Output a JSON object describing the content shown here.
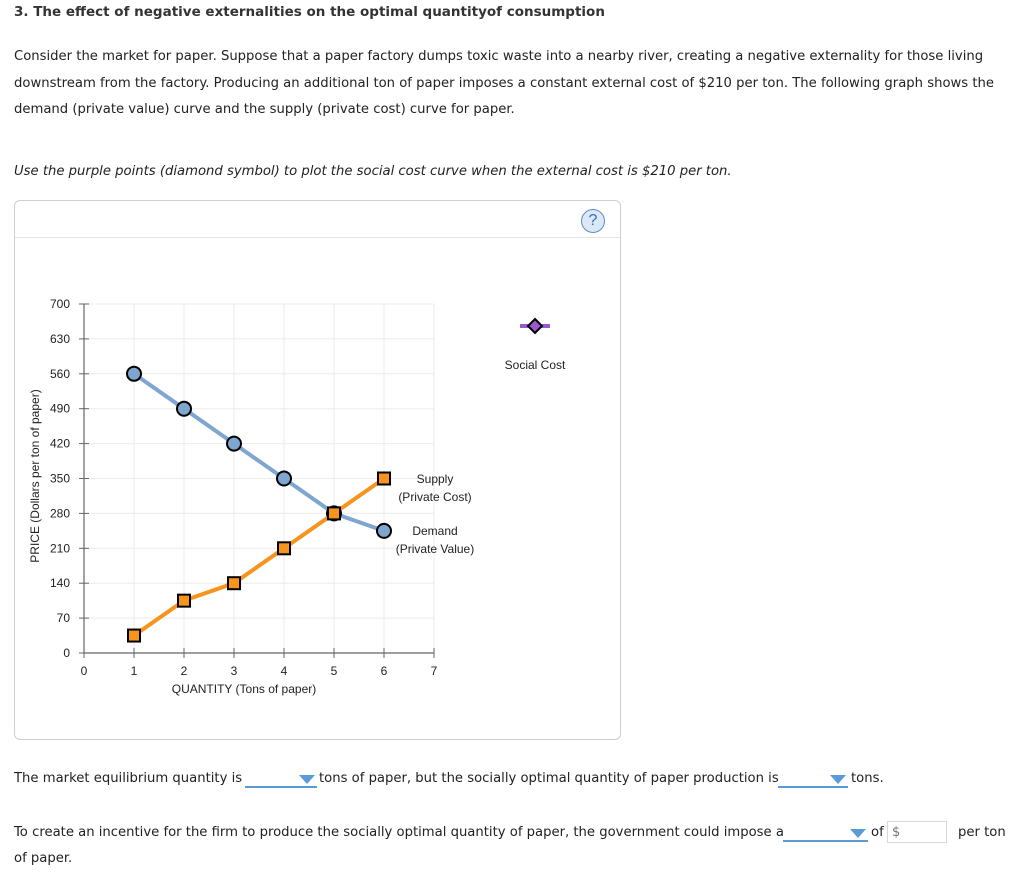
{
  "question": {
    "title": "3. The effect of negative externalities on the optimal quantityof consumption",
    "intro": "Consider the market for paper. Suppose that a paper factory dumps toxic waste into a nearby river, creating a negative externality for those living downstream from the factory. Producing an additional ton of paper imposes a constant external cost of $210 per ton. The following graph shows the demand (private value) curve and the supply (private cost) curve for paper.",
    "instruction": "Use the purple points (diamond symbol) to plot the social cost curve when the external cost is $210 per ton."
  },
  "graph": {
    "help_label": "?",
    "social_cost_tool_label": "Social Cost",
    "supply_label_1": "Supply",
    "supply_label_2": "(Private Cost)",
    "demand_label_1": "Demand",
    "demand_label_2": "(Private Value)",
    "colors": {
      "supply": "#f7941d",
      "demand": "#7ea6cf",
      "social_cost": "#9b59d0",
      "grid": "#ebebeb",
      "axis": "#666666"
    }
  },
  "chart_data": {
    "type": "line",
    "title": "",
    "xlabel": "QUANTITY (Tons of paper)",
    "ylabel": "PRICE (Dollars per ton of paper)",
    "xlim": [
      0,
      7
    ],
    "ylim": [
      0,
      700
    ],
    "x_ticks": [
      "0",
      "1",
      "2",
      "3",
      "4",
      "5",
      "6",
      "7"
    ],
    "y_ticks": [
      "0",
      "70",
      "140",
      "210",
      "280",
      "350",
      "420",
      "490",
      "560",
      "630",
      "700"
    ],
    "grid": true,
    "legend_position": "right (inline labels)",
    "series": [
      {
        "name": "Supply (Private Cost)",
        "marker": "square",
        "color": "#f7941d",
        "x": [
          1,
          2,
          3,
          4,
          5,
          6
        ],
        "values": [
          35,
          105,
          140,
          210,
          280,
          350
        ]
      },
      {
        "name": "Demand (Private Value)",
        "marker": "circle",
        "color": "#7ea6cf",
        "x": [
          1,
          2,
          3,
          4,
          5,
          6
        ],
        "values": [
          560,
          490,
          420,
          350,
          280,
          245
        ]
      },
      {
        "name": "Social Cost",
        "marker": "diamond",
        "color": "#9b59d0",
        "x": [],
        "values": []
      }
    ]
  },
  "questions": {
    "q1_prefix": "The market equilibrium quantity is",
    "q1_mid": "tons of paper, but the socially optimal quantity of paper production is",
    "q1_suffix": "tons.",
    "q2_prefix": "To create an incentive for the firm to produce the socially optimal quantity of paper, the government could impose a",
    "q2_of": "of",
    "q2_dollar_placeholder": "$",
    "q2_suffix": "per ton",
    "q2_line2": "of paper.",
    "dropdown1_value": "",
    "dropdown2_value": "",
    "dropdown3_value": "",
    "dollar_value": ""
  }
}
